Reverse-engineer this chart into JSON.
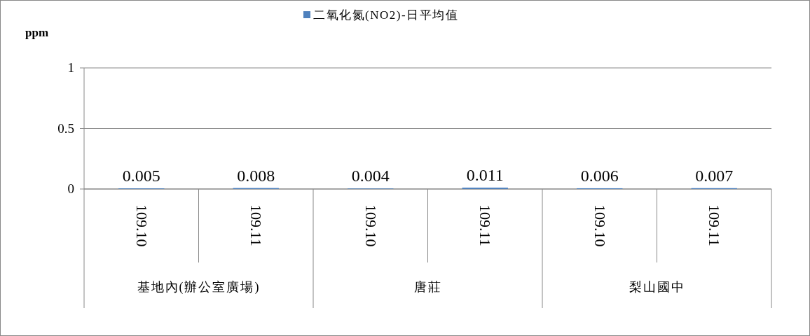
{
  "chart_data": {
    "type": "bar",
    "ylabel": "ppm",
    "categories": [
      "109.10",
      "109.11",
      "109.10",
      "109.11",
      "109.10",
      "109.11"
    ],
    "series": [
      {
        "name": "二氧化氮(NO2)-日平均值",
        "color": "#4f81bd",
        "values": [
          0.005,
          0.008,
          0.004,
          0.011,
          0.006,
          0.007
        ]
      }
    ],
    "ylim": [
      0,
      1
    ],
    "yticks": [
      0,
      0.5,
      1
    ],
    "grid": "y",
    "legend": "top",
    "data_labels": true,
    "annotations": [
      "基地內(辦公室廣場)",
      "唐莊",
      "梨山國中"
    ]
  }
}
